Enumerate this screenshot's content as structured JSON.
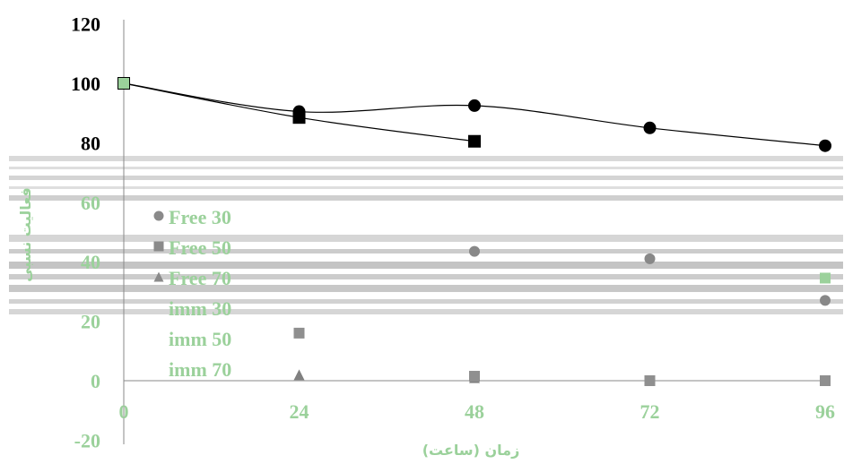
{
  "chart_data": {
    "type": "scatter",
    "title": "",
    "xlabel": "زمان (ساعت)",
    "ylabel": "فعالیت نسبی",
    "x": [
      0,
      24,
      48,
      72,
      96
    ],
    "x_ticks": [
      "0",
      "24",
      "48",
      "72",
      "96"
    ],
    "xlim": [
      0,
      96
    ],
    "y_ticks": [
      "-20",
      "0",
      "20",
      "40",
      "60",
      "80",
      "100",
      "120"
    ],
    "ylim": [
      -20,
      120
    ],
    "grid": false,
    "legend_position": "left",
    "series": [
      {
        "name": "Free 30",
        "marker": "circle",
        "values": [
          100,
          90.5,
          92.5,
          85,
          79
        ],
        "line": true,
        "color": "#000000"
      },
      {
        "name": "Free 50",
        "marker": "square",
        "values": [
          100,
          88.5,
          80.5,
          null,
          null
        ],
        "line": true,
        "color": "#000000"
      },
      {
        "name": "Free 70",
        "marker": "triangle",
        "values": [
          100,
          2,
          1,
          0,
          0
        ],
        "line": false,
        "color": "#808080"
      },
      {
        "name": "imm 30",
        "marker": "circle",
        "values": [
          100,
          null,
          43.5,
          41,
          27
        ],
        "line": false,
        "color": "#888888"
      },
      {
        "name": "imm 50",
        "marker": "square",
        "values": [
          100,
          16,
          1.5,
          0,
          0
        ],
        "line": false,
        "color": "#8f8f8f"
      },
      {
        "name": "imm 70",
        "marker": "square",
        "values": [
          100,
          null,
          null,
          null,
          34.5
        ],
        "line": false,
        "color": "#9bd19b"
      }
    ]
  },
  "colors": {
    "axis": "#000000",
    "label_green": "#9bd19b"
  }
}
